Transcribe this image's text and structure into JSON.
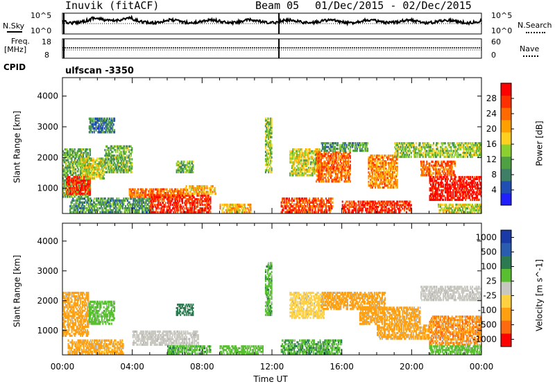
{
  "header": {
    "site": "Inuvik (fitACF)",
    "beam": "Beam 05",
    "date_range": "01/Dec/2015 - 02/Dec/2015"
  },
  "top_strip": {
    "nsky_label": "N.Sky",
    "nsearch_label": "N.Search",
    "noise_left_ticks": [
      "10^5",
      "10^0"
    ],
    "noise_right_ticks": [
      "10^5",
      "10^0"
    ],
    "freq_label_line1": "Freq.",
    "freq_label_line2": "[MHz]",
    "freq_left_ticks": [
      "18",
      "8"
    ],
    "nave_label": "Nave",
    "nave_right_ticks": [
      "60",
      "0"
    ],
    "cpid_label": "CPID",
    "cpid_value": "ulfscan -3350"
  },
  "colors": {
    "power_scale": [
      "#2020ff",
      "#204fb4",
      "#3f7f66",
      "#4fa040",
      "#8cd02f",
      "#ffd020",
      "#ffa000",
      "#ff6a00",
      "#ff3000",
      "#ff0000"
    ],
    "velocity_scale": [
      "#1a3aa8",
      "#2a5cb0",
      "#2c7a50",
      "#58c030",
      "#c8c8c0",
      "#ffd040",
      "#ffa010",
      "#ff6a10",
      "#ff0000"
    ],
    "ground_scatter": "#b4b4b4"
  },
  "chart_data": [
    {
      "type": "heatmap",
      "name": "power",
      "ylabel": "Slant Range [km]",
      "ylim": [
        180,
        4600
      ],
      "yticks": [
        "1000",
        "2000",
        "3000",
        "4000"
      ],
      "colorbar_label": "Power [dB]",
      "colorbar_ticks": [
        "4",
        "8",
        "12",
        "16",
        "20",
        "24",
        "28"
      ],
      "colorbar_range": [
        0,
        32
      ],
      "regions": [
        {
          "t0": 0.0,
          "t1": 1.6,
          "r0": 700,
          "r1": 2300,
          "v": 12
        },
        {
          "t0": 0.2,
          "t1": 1.6,
          "r0": 800,
          "r1": 1400,
          "v": 28
        },
        {
          "t0": 1.0,
          "t1": 2.4,
          "r0": 1300,
          "r1": 2000,
          "v": 16
        },
        {
          "t0": 1.5,
          "t1": 3.0,
          "r0": 2800,
          "r1": 3300,
          "v": 8
        },
        {
          "t0": 2.4,
          "t1": 4.0,
          "r0": 1500,
          "r1": 2400,
          "v": 12
        },
        {
          "t0": 0.4,
          "t1": 5.2,
          "r0": 200,
          "r1": 700,
          "v": 10
        },
        {
          "t0": 3.8,
          "t1": 7.0,
          "r0": 700,
          "r1": 1000,
          "v": 24
        },
        {
          "t0": 5.0,
          "t1": 8.5,
          "r0": 200,
          "r1": 800,
          "v": 28
        },
        {
          "t0": 6.5,
          "t1": 7.5,
          "r0": 1500,
          "r1": 1900,
          "v": 12
        },
        {
          "t0": 7.0,
          "t1": 8.8,
          "r0": 800,
          "r1": 1100,
          "v": 20
        },
        {
          "t0": 9.0,
          "t1": 10.8,
          "r0": 200,
          "r1": 500,
          "v": 20
        },
        {
          "t0": 11.6,
          "t1": 12.0,
          "r0": 1500,
          "r1": 3300,
          "v": 14
        },
        {
          "t0": 12.5,
          "t1": 15.5,
          "r0": 200,
          "r1": 700,
          "v": 26
        },
        {
          "t0": 13.0,
          "t1": 14.8,
          "r0": 1400,
          "r1": 2300,
          "v": 16
        },
        {
          "t0": 14.5,
          "t1": 16.5,
          "r0": 1200,
          "r1": 2200,
          "v": 24
        },
        {
          "t0": 14.8,
          "t1": 17.5,
          "r0": 2200,
          "r1": 2500,
          "v": 10
        },
        {
          "t0": 16.0,
          "t1": 20.0,
          "r0": 200,
          "r1": 600,
          "v": 28
        },
        {
          "t0": 17.5,
          "t1": 19.2,
          "r0": 1000,
          "r1": 2100,
          "v": 22
        },
        {
          "t0": 19.0,
          "t1": 24.0,
          "r0": 2000,
          "r1": 2500,
          "v": 14
        },
        {
          "t0": 20.5,
          "t1": 22.5,
          "r0": 1400,
          "r1": 1900,
          "v": 24
        },
        {
          "t0": 21.0,
          "t1": 24.0,
          "r0": 600,
          "r1": 1400,
          "v": 30
        },
        {
          "t0": 21.5,
          "t1": 24.0,
          "r0": 200,
          "r1": 500,
          "v": 16
        }
      ]
    },
    {
      "type": "heatmap",
      "name": "velocity",
      "ylabel": "Slant Range [km]",
      "ylim": [
        180,
        4600
      ],
      "yticks": [
        "1000",
        "2000",
        "3000",
        "4000"
      ],
      "xlabel": "Time UT",
      "xticks": [
        "00:00",
        "04:00",
        "08:00",
        "12:00",
        "16:00",
        "20:00",
        "00:00"
      ],
      "colorbar_label": "Velocity [m s^-1]",
      "colorbar_ticks": [
        "1000",
        "500",
        "100",
        "25",
        "-25",
        "-100",
        "-500",
        "-1000"
      ],
      "regions": [
        {
          "t0": 0.0,
          "t1": 1.5,
          "r0": 800,
          "r1": 2300,
          "v": -200
        },
        {
          "t0": 0.3,
          "t1": 3.5,
          "r0": 200,
          "r1": 700,
          "v": -150
        },
        {
          "t0": 1.5,
          "t1": 3.0,
          "r0": 1200,
          "r1": 2000,
          "v": 60
        },
        {
          "t0": 4.0,
          "t1": 7.8,
          "r0": 500,
          "r1": 1000,
          "v": 0
        },
        {
          "t0": 6.0,
          "t1": 8.5,
          "r0": 200,
          "r1": 500,
          "v": 80
        },
        {
          "t0": 6.5,
          "t1": 7.5,
          "r0": 1500,
          "r1": 1900,
          "v": 300
        },
        {
          "t0": 9.0,
          "t1": 11.5,
          "r0": 200,
          "r1": 500,
          "v": 60
        },
        {
          "t0": 11.6,
          "t1": 12.0,
          "r0": 1500,
          "r1": 3300,
          "v": 80
        },
        {
          "t0": 12.5,
          "t1": 16.0,
          "r0": 200,
          "r1": 700,
          "v": 90
        },
        {
          "t0": 13.0,
          "t1": 15.0,
          "r0": 1400,
          "r1": 2300,
          "v": -40
        },
        {
          "t0": 14.8,
          "t1": 18.5,
          "r0": 1700,
          "r1": 2300,
          "v": -300
        },
        {
          "t0": 17.0,
          "t1": 20.5,
          "r0": 1200,
          "r1": 1800,
          "v": -280
        },
        {
          "t0": 18.0,
          "t1": 21.0,
          "r0": 700,
          "r1": 1200,
          "v": -200
        },
        {
          "t0": 20.5,
          "t1": 24.0,
          "r0": 2000,
          "r1": 2500,
          "v": 0
        },
        {
          "t0": 21.0,
          "t1": 24.0,
          "r0": 500,
          "r1": 1500,
          "v": -450
        },
        {
          "t0": 21.0,
          "t1": 24.0,
          "r0": 200,
          "r1": 500,
          "v": 70
        }
      ]
    }
  ]
}
